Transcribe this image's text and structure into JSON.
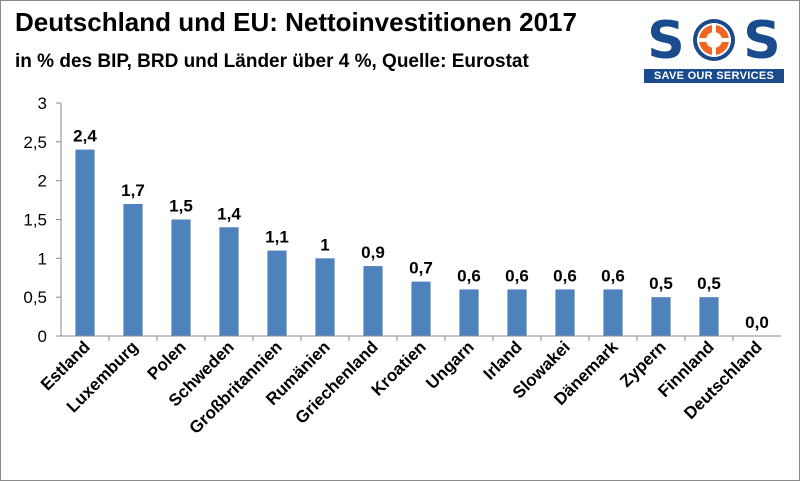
{
  "header": {
    "title": "Deutschland und EU: Nettoinvestitionen 2017",
    "subtitle": "in % des BIP, BRD und Länder über 4 %, Quelle: Eurostat"
  },
  "logo": {
    "letters": [
      "S",
      "O",
      "S"
    ],
    "tagline": "SAVE OUR SERVICES",
    "colors": {
      "blue": "#1a4b8c",
      "orange": "#f26522"
    }
  },
  "chart_data": {
    "type": "bar",
    "title": "Deutschland und EU: Nettoinvestitionen 2017",
    "subtitle": "in % des BIP, BRD und Länder über 4 %, Quelle: Eurostat",
    "categories": [
      "Estland",
      "Luxemburg",
      "Polen",
      "Schweden",
      "Großbritannien",
      "Rumänien",
      "Griechenland",
      "Kroatien",
      "Ungarn",
      "Irland",
      "Slowakei",
      "Dänemark",
      "Zypern",
      "Finnland",
      "Deutschland"
    ],
    "values": [
      2.4,
      1.7,
      1.5,
      1.4,
      1.1,
      1.0,
      0.9,
      0.7,
      0.6,
      0.6,
      0.6,
      0.6,
      0.5,
      0.5,
      0.0
    ],
    "value_labels": [
      "2,4",
      "1,7",
      "1,5",
      "1,4",
      "1,1",
      "1",
      "0,9",
      "0,7",
      "0,6",
      "0,6",
      "0,6",
      "0,6",
      "0,5",
      "0,5",
      "0,0"
    ],
    "highlight_label_index": 14,
    "ylim": [
      0,
      3
    ],
    "yticks": [
      0,
      0.5,
      1,
      1.5,
      2,
      2.5,
      3
    ],
    "ytick_labels": [
      "0",
      "0,5",
      "1",
      "1,5",
      "2",
      "2,5",
      "3"
    ],
    "xlabel": "",
    "ylabel": "",
    "grid": false,
    "legend": "none",
    "colors": {
      "bar": "#4f81bd",
      "highlight_label": "#ff0000",
      "axis": "#8a8a8a"
    }
  }
}
